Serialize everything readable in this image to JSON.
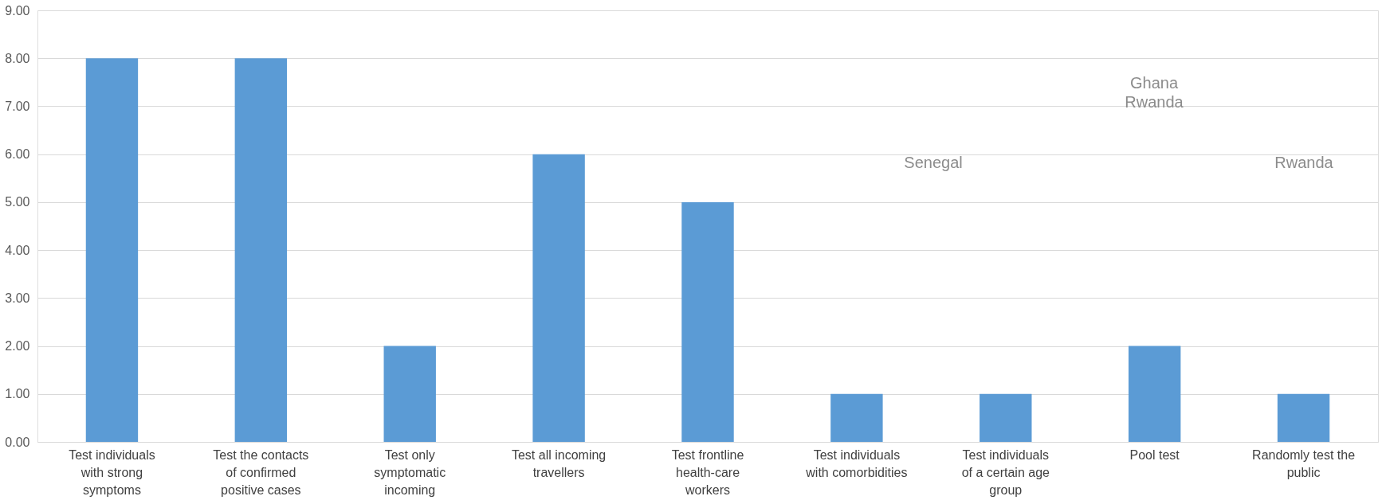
{
  "chart_data": {
    "type": "bar",
    "categories": [
      "Test individuals with strong symptoms",
      "Test the contacts of confirmed positive cases",
      "Test only symptomatic incoming",
      "Test all incoming travellers",
      "Test frontline health-care workers",
      "Test individuals with comorbidities",
      "Test individuals of a certain age group",
      "Pool test",
      "Randomly test the public"
    ],
    "values": [
      8,
      8,
      2,
      6,
      5,
      1,
      1,
      2,
      1
    ],
    "color": "#5b9bd5",
    "ylim": [
      0,
      9
    ],
    "yticks": [
      {
        "value": 0,
        "label": "0.00"
      },
      {
        "value": 1,
        "label": "1.00"
      },
      {
        "value": 2,
        "label": "2.00"
      },
      {
        "value": 3,
        "label": "3.00"
      },
      {
        "value": 4,
        "label": "4.00"
      },
      {
        "value": 5,
        "label": "5.00"
      },
      {
        "value": 6,
        "label": "6.00"
      },
      {
        "value": 7,
        "label": "7.00"
      },
      {
        "value": 8,
        "label": "8.00"
      },
      {
        "value": 9,
        "label": "9.00"
      }
    ],
    "grid": "y",
    "annotations": [
      "Senegal",
      "Ghana\nRwanda",
      "Rwanda"
    ]
  }
}
